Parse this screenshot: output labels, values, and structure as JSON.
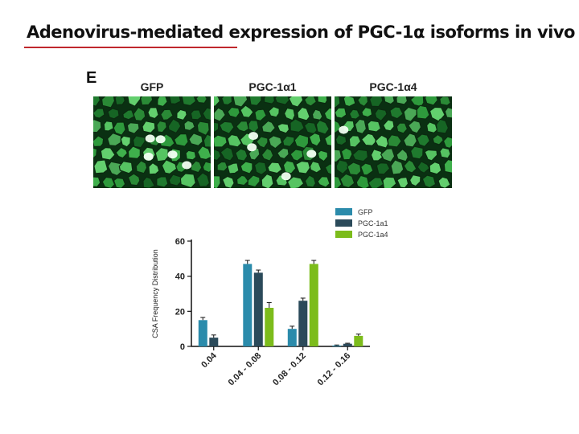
{
  "slide": {
    "title_pre": "Adenovirus-mediated expression of PGC-1",
    "title_alpha": "α",
    "title_post": " isoforms in vivo",
    "panel_letter": "E"
  },
  "panels": [
    {
      "label": "GFP"
    },
    {
      "label": "PGC-1α1"
    },
    {
      "label": "PGC-1α4"
    }
  ],
  "colors": {
    "gfp": "#2b8bab",
    "pgc1a1": "#2b4a5a",
    "pgc1a4": "#7cbc1b",
    "title_rule": "#c0282d"
  },
  "chart_data": {
    "type": "bar",
    "ylabel": "CSA Frequency Distribution",
    "xlabel": "",
    "ylim": [
      0,
      60
    ],
    "yticks": [
      "0",
      "20",
      "40",
      "60"
    ],
    "categories": [
      "0.04",
      "0.04 - 0.08",
      "0.08 - 0.12",
      "0.12 - 0.16"
    ],
    "legend_position": "top-right",
    "series": [
      {
        "name": "GFP",
        "values": [
          15,
          47,
          10,
          0.5
        ],
        "errors": [
          1.5,
          2,
          1.5,
          0.3
        ]
      },
      {
        "name": "PGC-1a1",
        "values": [
          5,
          42,
          26,
          1.5
        ],
        "errors": [
          1.5,
          1.5,
          1.5,
          0.3
        ]
      },
      {
        "name": "PGC-1a4",
        "values": [
          0,
          22,
          47,
          6
        ],
        "errors": [
          0,
          3,
          2,
          1
        ]
      }
    ]
  }
}
